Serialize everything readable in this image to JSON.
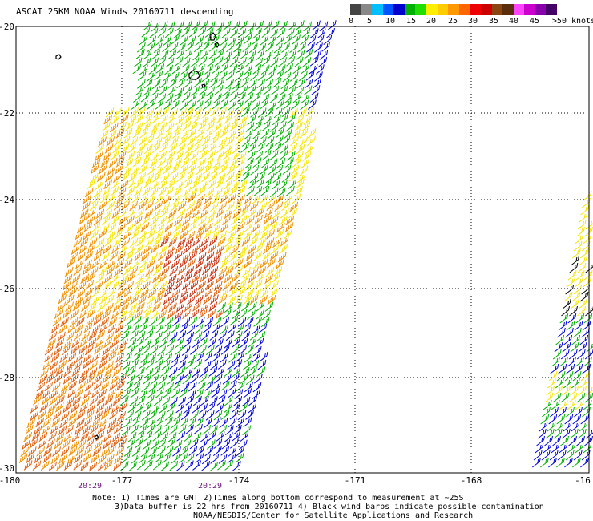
{
  "title": "ASCAT 25KM NOAA Winds 20160711 descending",
  "color_scale": {
    "labels": [
      "0",
      "5",
      "10",
      "15",
      "20",
      "25",
      "30",
      "35",
      "40",
      "45",
      ">50 knots"
    ],
    "colors": [
      "#444444",
      "#888888",
      "#00bfff",
      "#0055ff",
      "#0000cc",
      "#00b000",
      "#22dd00",
      "#ffee00",
      "#ffcc00",
      "#ff9900",
      "#ff6600",
      "#ee0000",
      "#cc0000",
      "#8b4513",
      "#5a2d0c",
      "#ff44ff",
      "#cc00cc",
      "#8800aa",
      "#440066"
    ]
  },
  "map": {
    "latitudes": [
      "-20",
      "-22",
      "-24",
      "-26",
      "-28",
      "-30"
    ],
    "longitudes": [
      "-180",
      "-177",
      "-174",
      "-171",
      "-168",
      "-16"
    ],
    "swath_times": [
      "20:29",
      "20:29"
    ],
    "wind_barb_colors": {
      "green": "#00b000",
      "yellow": "#f5e600",
      "orange": "#f09000",
      "dark_orange": "#e06010",
      "red_brown": "#c83010",
      "blue": "#0000dd",
      "black": "#000000"
    }
  },
  "notes": {
    "line1": "Note: 1) Times are GMT 2)Times along bottom correspond to measurement at ~25S",
    "line2": "3)Data buffer is 22 hrs from 20160711 4) Black wind barbs indicate possible contamination",
    "line3": "NOAA/NESDIS/Center for Satellite Applications and Research"
  }
}
